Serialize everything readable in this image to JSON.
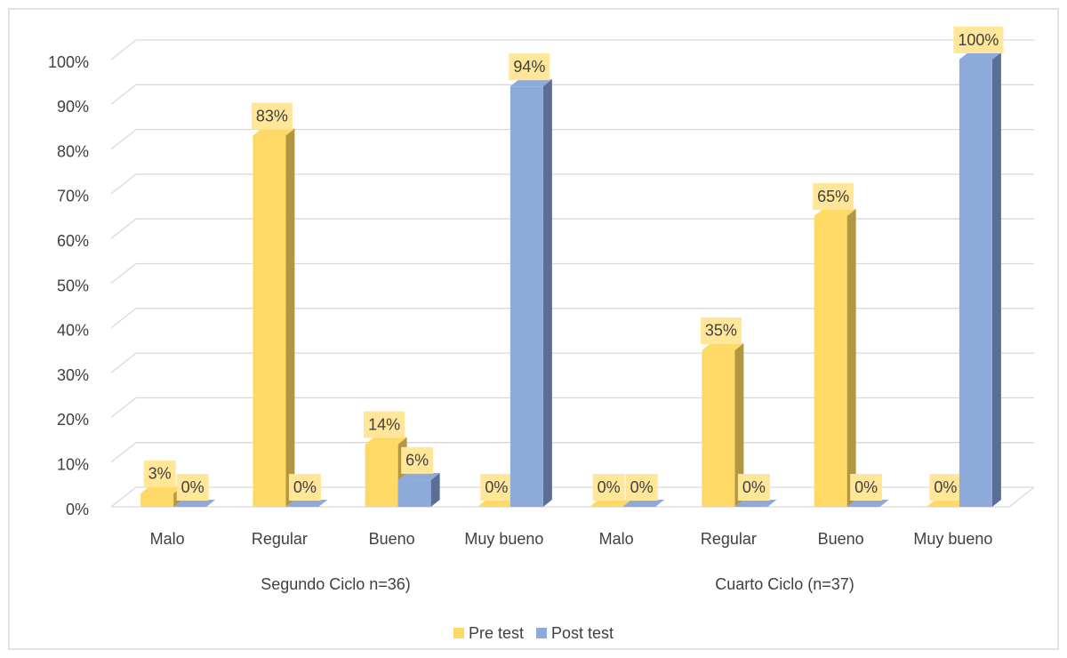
{
  "chart_data": {
    "type": "bar3d",
    "groups": [
      {
        "label": "Segundo Ciclo n=36)",
        "categories": [
          "Malo",
          "Regular",
          "Bueno",
          "Muy bueno"
        ]
      },
      {
        "label": "Cuarto Ciclo (n=37)",
        "categories": [
          "Malo",
          "Regular",
          "Bueno",
          "Muy bueno"
        ]
      }
    ],
    "series": [
      {
        "name": "Pre test",
        "color": "#ffd966",
        "side_color": "#b39640",
        "values": [
          3,
          83,
          14,
          0,
          0,
          35,
          65,
          0
        ],
        "value_labels": [
          "3%",
          "83%",
          "14%",
          "0%",
          "0%",
          "35%",
          "65%",
          "0%"
        ]
      },
      {
        "name": "Post test",
        "color": "#8eaadb",
        "side_color": "#5b6e96",
        "values": [
          0,
          0,
          6,
          94,
          0,
          0,
          0,
          100
        ],
        "value_labels": [
          "0%",
          "0%",
          "6%",
          "94%",
          "0%",
          "0%",
          "0%",
          "100%"
        ]
      }
    ],
    "ylim": [
      0,
      100
    ],
    "yticks": [
      {
        "value": 0,
        "label": "0%"
      },
      {
        "value": 10,
        "label": "10%"
      },
      {
        "value": 20,
        "label": "20%"
      },
      {
        "value": 30,
        "label": "30%"
      },
      {
        "value": 40,
        "label": "40%"
      },
      {
        "value": 50,
        "label": "50%"
      },
      {
        "value": 60,
        "label": "60%"
      },
      {
        "value": 70,
        "label": "70%"
      },
      {
        "value": 80,
        "label": "80%"
      },
      {
        "value": 90,
        "label": "90%"
      },
      {
        "value": 100,
        "label": "100%"
      }
    ],
    "grid": true,
    "legend": "bottom",
    "label_background": "#ffe699"
  }
}
